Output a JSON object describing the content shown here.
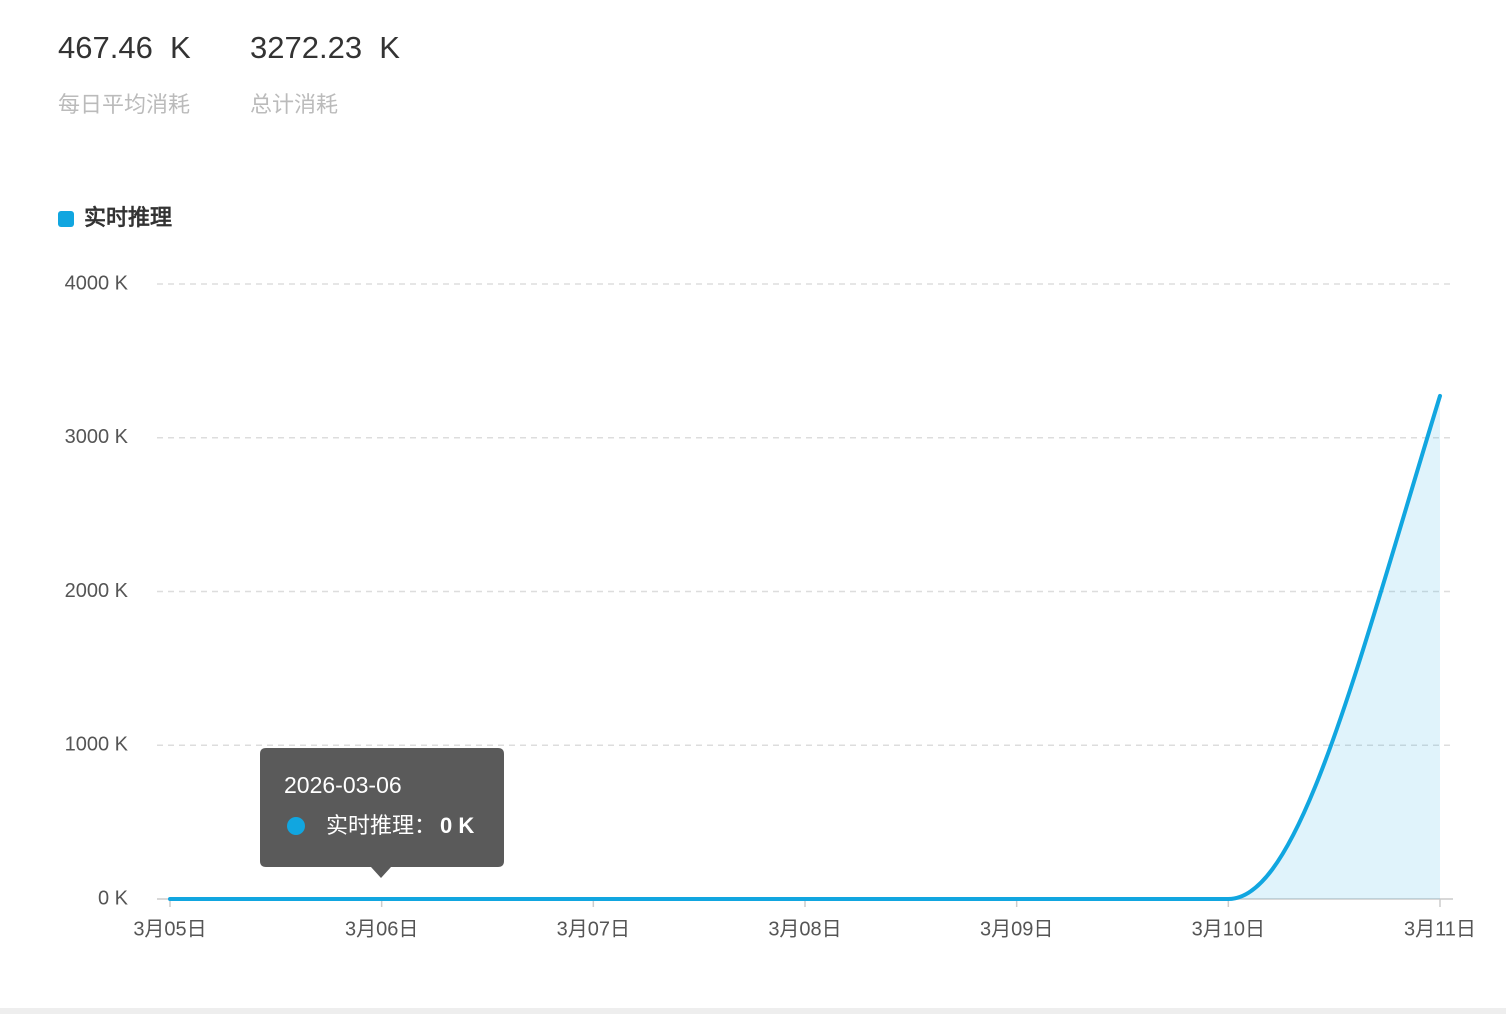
{
  "stats": [
    {
      "value": "467.46  K",
      "label": "每日平均消耗"
    },
    {
      "value": "3272.23  K",
      "label": "总计消耗"
    }
  ],
  "chart_data": {
    "type": "line",
    "x": [
      "3月05日",
      "3月06日",
      "3月07日",
      "3月08日",
      "3月09日",
      "3月10日",
      "3月11日"
    ],
    "series": [
      {
        "name": "实时推理",
        "color": "#11a6e0",
        "values": [
          0,
          0,
          0,
          0,
          0,
          0,
          3272.23
        ]
      }
    ],
    "ylim": [
      0,
      4000
    ],
    "yticks": [
      {
        "value": 0,
        "label": "0 K"
      },
      {
        "value": 1000,
        "label": "1000 K"
      },
      {
        "value": 2000,
        "label": "2000 K"
      },
      {
        "value": 3000,
        "label": "3000 K"
      },
      {
        "value": 4000,
        "label": "4000 K"
      }
    ],
    "grid": true,
    "area": true,
    "tooltip": {
      "title": "2026-03-06",
      "name": "实时推理：",
      "value_label": "0 K",
      "index": 1
    }
  }
}
